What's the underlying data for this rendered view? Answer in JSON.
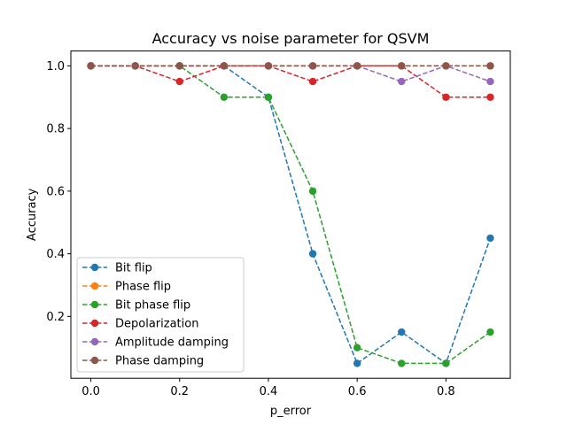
{
  "chart_data": {
    "type": "line",
    "title": "Accuracy vs noise parameter for QSVM",
    "xlabel": "p_error",
    "ylabel": "Accuracy",
    "xlim": [
      -0.045,
      0.945
    ],
    "ylim": [
      0.0025,
      1.0475
    ],
    "xticks": [
      0.0,
      0.2,
      0.4,
      0.6,
      0.8
    ],
    "xtick_labels": [
      "0.0",
      "0.2",
      "0.4",
      "0.6",
      "0.8"
    ],
    "yticks": [
      0.2,
      0.4,
      0.6,
      0.8,
      1.0
    ],
    "ytick_labels": [
      "0.2",
      "0.4",
      "0.6",
      "0.8",
      "1.0"
    ],
    "grid": false,
    "legend_position": "lower-left",
    "x": [
      0.0,
      0.1,
      0.2,
      0.3,
      0.4,
      0.5,
      0.6,
      0.7,
      0.8,
      0.9
    ],
    "series": [
      {
        "name": "Bit flip",
        "color": "#1f77b4",
        "values": [
          1.0,
          1.0,
          1.0,
          1.0,
          0.9,
          0.4,
          0.05,
          0.15,
          0.05,
          0.45
        ]
      },
      {
        "name": "Phase flip",
        "color": "#ff7f0e",
        "values": [
          1.0,
          1.0,
          1.0,
          1.0,
          1.0,
          1.0,
          1.0,
          1.0,
          1.0,
          1.0
        ]
      },
      {
        "name": "Bit phase flip",
        "color": "#2ca02c",
        "values": [
          1.0,
          1.0,
          1.0,
          0.9,
          0.9,
          0.6,
          0.1,
          0.05,
          0.05,
          0.15
        ]
      },
      {
        "name": "Depolarization",
        "color": "#d62728",
        "values": [
          1.0,
          1.0,
          0.95,
          1.0,
          1.0,
          0.95,
          1.0,
          1.0,
          0.9,
          0.9
        ]
      },
      {
        "name": "Amplitude damping",
        "color": "#9467bd",
        "values": [
          1.0,
          1.0,
          1.0,
          1.0,
          1.0,
          1.0,
          1.0,
          0.95,
          1.0,
          0.95
        ]
      },
      {
        "name": "Phase damping",
        "color": "#8c564b",
        "values": [
          1.0,
          1.0,
          1.0,
          1.0,
          1.0,
          1.0,
          1.0,
          1.0,
          1.0,
          1.0
        ]
      }
    ]
  }
}
